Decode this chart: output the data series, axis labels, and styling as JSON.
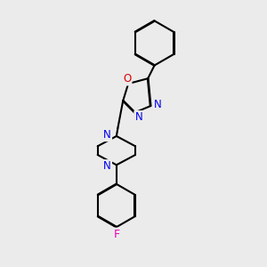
{
  "bg_color": "#ebebeb",
  "bond_color": "#000000",
  "N_color": "#0000ee",
  "O_color": "#dd0000",
  "F_color": "#ee00bb",
  "line_width": 1.5,
  "dbo": 0.012,
  "figsize": [
    3.0,
    3.0
  ],
  "dpi": 100,
  "xlim": [
    0,
    10
  ],
  "ylim": [
    0,
    10
  ]
}
